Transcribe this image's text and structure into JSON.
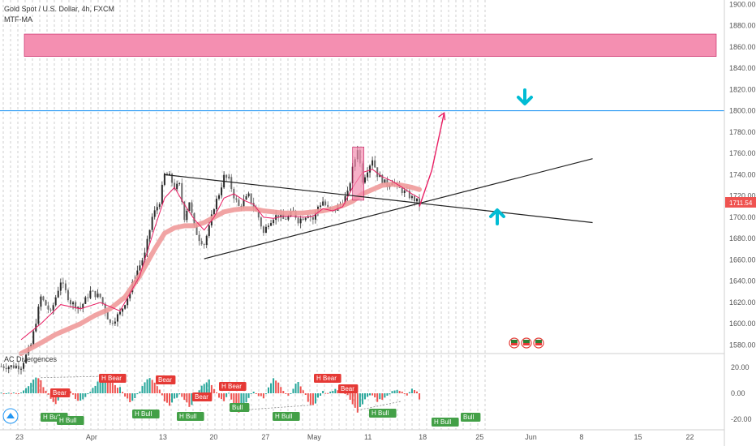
{
  "header": {
    "symbol_title": "Gold Spot / U.S. Dollar, 4h, FXCM",
    "indicator_label": "MTF-MA",
    "sub_indicator_label": "AC Divergences"
  },
  "price_tag": "1711.54",
  "colors": {
    "bull": "#26a69a",
    "bear": "#ef5350",
    "ma_thick": "#ef9a9a",
    "ma_thin": "#e91e63",
    "zone": "#f48fb1",
    "level": "#2196f3",
    "arrow": "#00bcd4",
    "projection": "#e91e63",
    "trend": "#222222",
    "grid": "#cfcfcf"
  },
  "chart_data": [
    {
      "type": "candlestick",
      "title": "Gold Spot / U.S. Dollar, 4h, FXCM",
      "y_ticks": [
        "1900.00",
        "1880.00",
        "1860.00",
        "1840.00",
        "1820.00",
        "1800.00",
        "1780.00",
        "1760.00",
        "1740.00",
        "1720.00",
        "1700.00",
        "1680.00",
        "1660.00",
        "1640.00",
        "1620.00",
        "1600.00",
        "1580.00"
      ],
      "x_ticks": [
        "23",
        "Apr",
        "13",
        "20",
        "27",
        "May",
        "11",
        "18",
        "25",
        "Jun",
        "8",
        "15",
        "22"
      ],
      "ylim": [
        1572,
        1904
      ],
      "price_path": [
        [
          0,
          1560
        ],
        [
          4,
          1580
        ],
        [
          8,
          1625
        ],
        [
          12,
          1610
        ],
        [
          16,
          1640
        ],
        [
          20,
          1620
        ],
        [
          24,
          1615
        ],
        [
          28,
          1630
        ],
        [
          32,
          1625
        ],
        [
          36,
          1600
        ],
        [
          40,
          1610
        ],
        [
          44,
          1630
        ],
        [
          47,
          1650
        ],
        [
          50,
          1665
        ],
        [
          53,
          1700
        ],
        [
          56,
          1715
        ],
        [
          58,
          1740
        ],
        [
          60,
          1738
        ],
        [
          62,
          1728
        ],
        [
          64,
          1730
        ],
        [
          66,
          1700
        ],
        [
          68,
          1715
        ],
        [
          70,
          1690
        ],
        [
          72,
          1680
        ],
        [
          74,
          1675
        ],
        [
          76,
          1690
        ],
        [
          78,
          1710
        ],
        [
          80,
          1722
        ],
        [
          82,
          1738
        ],
        [
          84,
          1735
        ],
        [
          86,
          1720
        ],
        [
          88,
          1710
        ],
        [
          90,
          1715
        ],
        [
          92,
          1720
        ],
        [
          94,
          1710
        ],
        [
          96,
          1700
        ],
        [
          98,
          1685
        ],
        [
          100,
          1695
        ],
        [
          102,
          1700
        ],
        [
          104,
          1702
        ],
        [
          106,
          1698
        ],
        [
          108,
          1700
        ],
        [
          110,
          1705
        ],
        [
          112,
          1697
        ],
        [
          114,
          1700
        ],
        [
          116,
          1703
        ],
        [
          118,
          1698
        ],
        [
          120,
          1710
        ],
        [
          122,
          1715
        ],
        [
          124,
          1708
        ],
        [
          126,
          1705
        ],
        [
          128,
          1710
        ],
        [
          130,
          1715
        ],
        [
          132,
          1722
        ],
        [
          134,
          1745
        ],
        [
          136,
          1765
        ],
        [
          138,
          1735
        ],
        [
          140,
          1745
        ],
        [
          142,
          1755
        ],
        [
          144,
          1740
        ],
        [
          146,
          1735
        ],
        [
          148,
          1730
        ],
        [
          150,
          1735
        ],
        [
          152,
          1728
        ],
        [
          154,
          1725
        ],
        [
          156,
          1722
        ],
        [
          158,
          1718
        ],
        [
          160,
          1715
        ],
        [
          161,
          1712
        ]
      ],
      "ma_thick_path": [
        [
          0,
          1572
        ],
        [
          8,
          1582
        ],
        [
          14,
          1590
        ],
        [
          20,
          1596
        ],
        [
          24,
          1600
        ],
        [
          30,
          1608
        ],
        [
          36,
          1614
        ],
        [
          42,
          1625
        ],
        [
          48,
          1645
        ],
        [
          54,
          1670
        ],
        [
          58,
          1685
        ],
        [
          62,
          1690
        ],
        [
          66,
          1692
        ],
        [
          70,
          1692
        ],
        [
          74,
          1695
        ],
        [
          78,
          1700
        ],
        [
          82,
          1705
        ],
        [
          86,
          1707
        ],
        [
          90,
          1708
        ],
        [
          94,
          1708
        ],
        [
          98,
          1706
        ],
        [
          102,
          1705
        ],
        [
          106,
          1704
        ],
        [
          110,
          1704
        ],
        [
          114,
          1704
        ],
        [
          118,
          1705
        ],
        [
          122,
          1706
        ],
        [
          126,
          1708
        ],
        [
          130,
          1711
        ],
        [
          134,
          1715
        ],
        [
          138,
          1722
        ],
        [
          142,
          1726
        ],
        [
          146,
          1730
        ],
        [
          150,
          1731
        ],
        [
          154,
          1730
        ],
        [
          158,
          1728
        ],
        [
          161,
          1726
        ]
      ],
      "ma_thin_path": [
        [
          0,
          1585
        ],
        [
          8,
          1600
        ],
        [
          16,
          1618
        ],
        [
          24,
          1614
        ],
        [
          32,
          1620
        ],
        [
          40,
          1612
        ],
        [
          48,
          1645
        ],
        [
          54,
          1690
        ],
        [
          58,
          1718
        ],
        [
          62,
          1728
        ],
        [
          66,
          1712
        ],
        [
          70,
          1698
        ],
        [
          74,
          1688
        ],
        [
          78,
          1700
        ],
        [
          82,
          1718
        ],
        [
          86,
          1722
        ],
        [
          90,
          1716
        ],
        [
          94,
          1712
        ],
        [
          98,
          1700
        ],
        [
          102,
          1699
        ],
        [
          106,
          1701
        ],
        [
          110,
          1701
        ],
        [
          114,
          1700
        ],
        [
          118,
          1701
        ],
        [
          122,
          1708
        ],
        [
          126,
          1706
        ],
        [
          130,
          1710
        ],
        [
          134,
          1728
        ],
        [
          138,
          1742
        ],
        [
          142,
          1745
        ],
        [
          146,
          1738
        ],
        [
          150,
          1734
        ],
        [
          154,
          1728
        ],
        [
          158,
          1722
        ],
        [
          161,
          1718
        ]
      ],
      "resistance_zone": [
        1851,
        1872
      ],
      "horizontal_level": 1800,
      "trendlines": [
        {
          "from": [
            58,
            1740
          ],
          "to": [
            231,
            1695
          ]
        },
        {
          "from": [
            74,
            1661
          ],
          "to": [
            231,
            1755
          ]
        }
      ],
      "projection": {
        "from": [
          161,
          1710
        ],
        "via": [
          166,
          1744
        ],
        "to": [
          171,
          1798
        ]
      }
    },
    {
      "type": "bar",
      "title": "AC Divergences",
      "y_ticks": [
        "20.00",
        "0.00",
        "-20.00"
      ],
      "ylim": [
        -28,
        28
      ],
      "osc_path": [
        [
          0,
          0
        ],
        [
          3,
          5
        ],
        [
          6,
          13
        ],
        [
          8,
          9
        ],
        [
          10,
          2
        ],
        [
          12,
          -4
        ],
        [
          14,
          -8
        ],
        [
          16,
          -2
        ],
        [
          18,
          4
        ],
        [
          20,
          2
        ],
        [
          22,
          -4
        ],
        [
          24,
          -6
        ],
        [
          26,
          -2
        ],
        [
          28,
          2
        ],
        [
          30,
          6
        ],
        [
          32,
          12
        ],
        [
          34,
          14
        ],
        [
          36,
          10
        ],
        [
          38,
          6
        ],
        [
          40,
          4
        ],
        [
          42,
          -2
        ],
        [
          44,
          -6
        ],
        [
          46,
          -4
        ],
        [
          48,
          2
        ],
        [
          50,
          8
        ],
        [
          52,
          12
        ],
        [
          54,
          8
        ],
        [
          56,
          2
        ],
        [
          58,
          -6
        ],
        [
          60,
          -10
        ],
        [
          62,
          -5
        ],
        [
          64,
          0
        ],
        [
          66,
          -6
        ],
        [
          68,
          -10
        ],
        [
          70,
          -6
        ],
        [
          72,
          2
        ],
        [
          74,
          8
        ],
        [
          76,
          10
        ],
        [
          78,
          4
        ],
        [
          80,
          -4
        ],
        [
          82,
          -6
        ],
        [
          84,
          0
        ],
        [
          86,
          -8
        ],
        [
          88,
          -14
        ],
        [
          90,
          -9
        ],
        [
          92,
          -3
        ],
        [
          94,
          2
        ],
        [
          96,
          -2
        ],
        [
          98,
          -4
        ],
        [
          100,
          4
        ],
        [
          102,
          12
        ],
        [
          104,
          9
        ],
        [
          106,
          2
        ],
        [
          108,
          -2
        ],
        [
          110,
          4
        ],
        [
          112,
          9
        ],
        [
          114,
          2
        ],
        [
          116,
          -6
        ],
        [
          118,
          -10
        ],
        [
          120,
          -4
        ],
        [
          122,
          2
        ],
        [
          124,
          0
        ],
        [
          126,
          2
        ],
        [
          128,
          3
        ],
        [
          130,
          2
        ],
        [
          132,
          -2
        ],
        [
          134,
          -9
        ],
        [
          136,
          -14
        ],
        [
          138,
          -8
        ],
        [
          140,
          -3
        ],
        [
          142,
          -2
        ],
        [
          144,
          -6
        ],
        [
          146,
          -4
        ],
        [
          148,
          -2
        ],
        [
          150,
          1
        ],
        [
          152,
          3
        ],
        [
          154,
          2
        ],
        [
          156,
          -2
        ],
        [
          158,
          3
        ],
        [
          160,
          1
        ],
        [
          161,
          -4
        ]
      ],
      "annotations": [
        {
          "label": "Bear",
          "type": "bear"
        },
        {
          "label": "H Bull",
          "type": "bull"
        },
        {
          "label": "H Bull",
          "type": "bull"
        },
        {
          "label": "H Bear",
          "type": "bear"
        },
        {
          "label": "Bear",
          "type": "bear"
        },
        {
          "label": "H Bull",
          "type": "bull"
        },
        {
          "label": "H Bull",
          "type": "bull"
        },
        {
          "label": "Bear",
          "type": "bear"
        },
        {
          "label": "H Bear",
          "type": "bear"
        },
        {
          "label": "Bull",
          "type": "bull"
        },
        {
          "label": "H Bull",
          "type": "bull"
        },
        {
          "label": "H Bear",
          "type": "bear"
        },
        {
          "label": "Bear",
          "type": "bear"
        },
        {
          "label": "H Bull",
          "type": "bull"
        },
        {
          "label": "H Bull",
          "type": "bull"
        },
        {
          "label": "Bull",
          "type": "bull"
        }
      ]
    }
  ]
}
